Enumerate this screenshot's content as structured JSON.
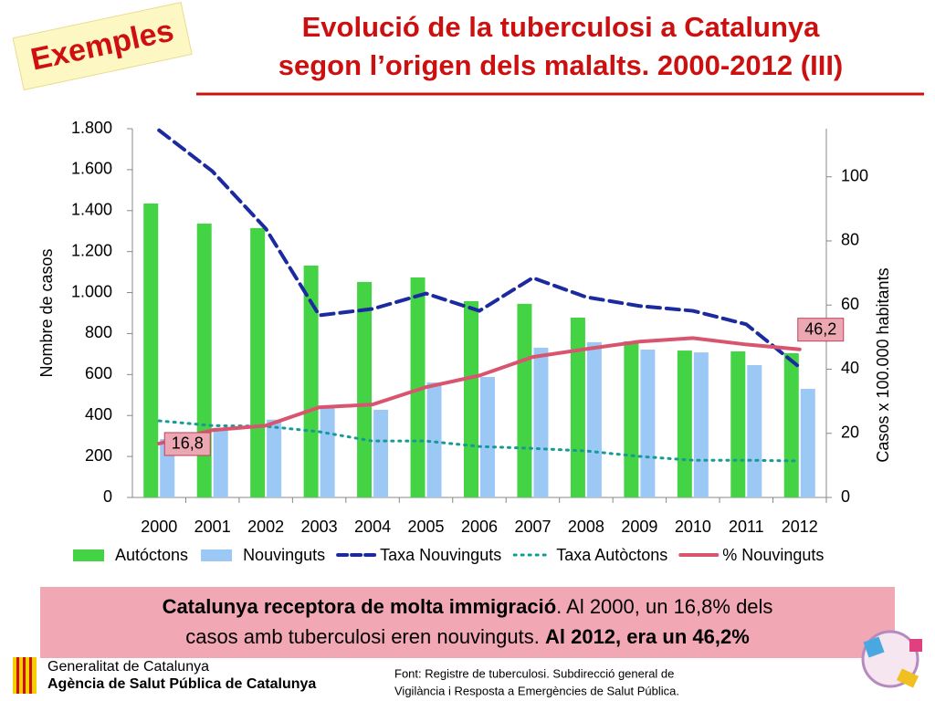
{
  "slide": {
    "stamp": "Exemples",
    "title": [
      "Evolució de la tuberculosi a Catalunya",
      "segon l’origen dels malalts. 2000-2012 (III)"
    ],
    "note": {
      "lines": [
        [
          {
            "text": "Catalunya receptora de molta immigració",
            "bold": true
          },
          {
            "text": ". Al 2000, un 16,8% dels"
          }
        ],
        [
          {
            "text": "casos amb tuberculosi eren nouvinguts. "
          },
          {
            "text": "Al 2012, era un 46,2%",
            "bold": true
          }
        ]
      ]
    },
    "footer": [
      "Generalitat de Catalunya",
      "Agència de Salut Pública de Catalunya"
    ],
    "source": [
      "Font: Registre de  tuberculosi. Subdirecció general de",
      "Vigilància i Resposta a Emergències  de Salut Pública."
    ]
  },
  "chart_data": {
    "type": "bar",
    "ylabel": "Nombre de casos",
    "y2label": "Casos x 100.000 habitants",
    "categories": [
      "2000",
      "2001",
      "2002",
      "2003",
      "2004",
      "2005",
      "2006",
      "2007",
      "2008",
      "2009",
      "2010",
      "2011",
      "2012"
    ],
    "ylim": [
      0,
      1800
    ],
    "yticks": [
      0,
      200,
      400,
      600,
      800,
      {
        "value": 1000,
        "label": "1.000"
      },
      {
        "value": 1200,
        "label": "1.200"
      },
      {
        "value": 1400,
        "label": "1.400"
      },
      {
        "value": 1600,
        "label": "1.600"
      },
      {
        "value": 1800,
        "label": "1.800"
      }
    ],
    "y2lim": [
      0,
      115
    ],
    "y2ticks": [
      0,
      20,
      40,
      60,
      80,
      100
    ],
    "grid": false,
    "legend": "bottom",
    "series": [
      {
        "name": "Autóctons",
        "type": "bar",
        "color": "#44d344",
        "values": [
          1435,
          1337,
          1315,
          1132,
          1052,
          1074,
          958,
          945,
          878,
          762,
          717,
          713,
          704
        ]
      },
      {
        "name": "Nouvinguts",
        "type": "bar",
        "color": "#9cc8f5",
        "values": [
          285,
          340,
          380,
          441,
          428,
          561,
          588,
          731,
          758,
          722,
          708,
          646,
          530
        ]
      },
      {
        "name": "Taxa Nouvinguts",
        "type": "line",
        "axis": "y2",
        "dash": "dashed",
        "color": "#1c2aa0",
        "values": [
          114.5,
          101.7,
          83.8,
          56.8,
          58.8,
          63.6,
          58.2,
          68.5,
          62.5,
          59.7,
          58.2,
          54,
          40.6
        ]
      },
      {
        "name": "Taxa Autòctons",
        "type": "line",
        "axis": "y2",
        "dash": "dotted",
        "color": "#159a96",
        "values": [
          23.9,
          22.4,
          22.2,
          20.5,
          17.6,
          17.6,
          15.9,
          15.3,
          14.5,
          12.8,
          11.6,
          11.6,
          11.4
        ]
      },
      {
        "name": "% Nouvinguts",
        "type": "line",
        "axis": "y2",
        "dash": "solid",
        "color": "#d9546e",
        "values": [
          16.8,
          21,
          22.4,
          28.1,
          29,
          34.4,
          38,
          43.8,
          46.3,
          48.6,
          49.7,
          47.7,
          46.2
        ],
        "value_labels": [
          "16,8",
          null,
          null,
          null,
          null,
          null,
          null,
          null,
          null,
          null,
          null,
          null,
          "46,2"
        ]
      }
    ]
  }
}
